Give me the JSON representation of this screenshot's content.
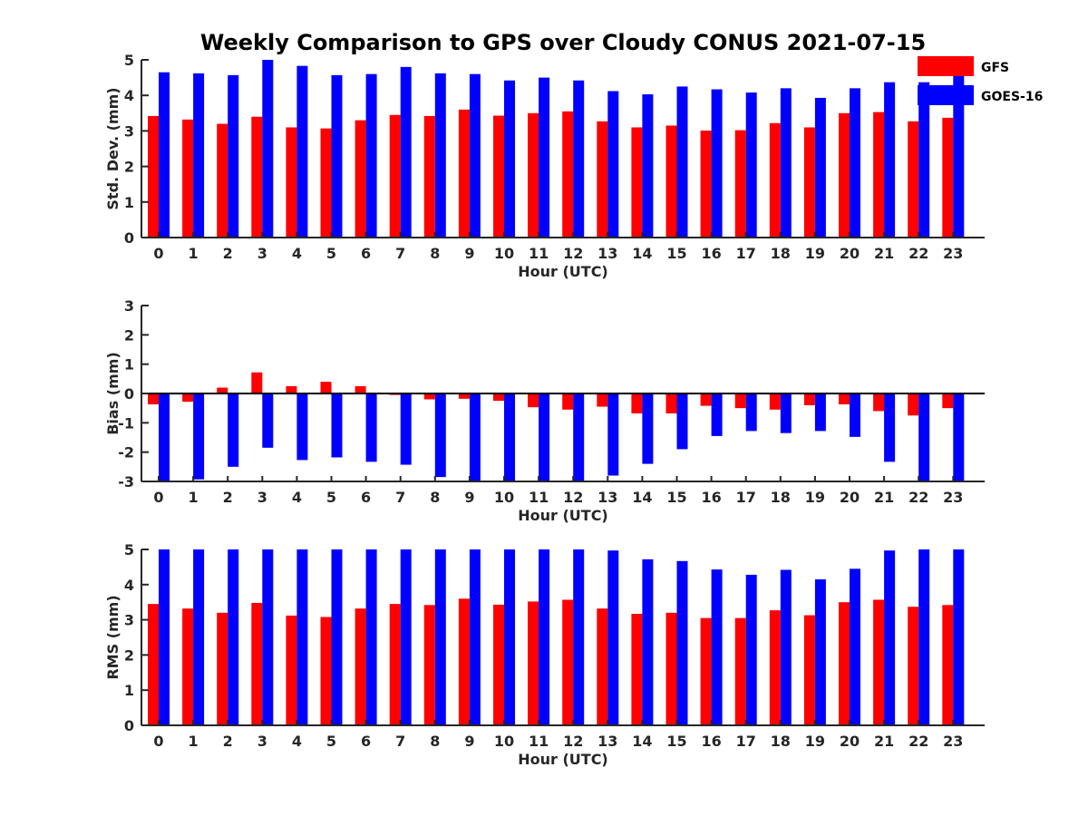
{
  "title": "Weekly Comparison to GPS over Cloudy CONUS 2021-07-15",
  "colors": {
    "GFS": "#ff0000",
    "GOES-16": "#0000ff"
  },
  "legend": {
    "placement": "top-right",
    "entries": [
      {
        "name": "GFS",
        "color": "#ff0000"
      },
      {
        "name": "GOES-16",
        "color": "#0000ff"
      }
    ]
  },
  "chart_data": [
    {
      "type": "bar",
      "xlabel": "Hour (UTC)",
      "ylabel": "Std. Dev. (mm)",
      "ylim": [
        0,
        5
      ],
      "yticks": [
        0,
        1,
        2,
        3,
        4,
        5
      ],
      "categories": [
        "0",
        "1",
        "2",
        "3",
        "4",
        "5",
        "6",
        "7",
        "8",
        "9",
        "10",
        "11",
        "12",
        "13",
        "14",
        "15",
        "16",
        "17",
        "18",
        "19",
        "20",
        "21",
        "22",
        "23"
      ],
      "series": [
        {
          "name": "GFS",
          "color": "#ff0000",
          "values": [
            3.42,
            3.32,
            3.2,
            3.4,
            3.1,
            3.07,
            3.3,
            3.45,
            3.42,
            3.6,
            3.43,
            3.5,
            3.55,
            3.27,
            3.1,
            3.15,
            3.01,
            3.02,
            3.22,
            3.1,
            3.5,
            3.53,
            3.27,
            3.37
          ]
        },
        {
          "name": "GOES-16",
          "color": "#0000ff",
          "values": [
            4.65,
            4.62,
            4.57,
            5.0,
            4.83,
            4.57,
            4.6,
            4.8,
            4.62,
            4.6,
            4.42,
            4.5,
            4.42,
            4.12,
            4.03,
            4.25,
            4.17,
            4.08,
            4.2,
            3.93,
            4.2,
            4.37,
            4.37,
            4.7
          ]
        }
      ]
    },
    {
      "type": "bar",
      "xlabel": "Hour (UTC)",
      "ylabel": "Bias (mm)",
      "ylim": [
        -3,
        3
      ],
      "yticks": [
        -3,
        -2,
        -1,
        0,
        1,
        2,
        3
      ],
      "categories": [
        "0",
        "1",
        "2",
        "3",
        "4",
        "5",
        "6",
        "7",
        "8",
        "9",
        "10",
        "11",
        "12",
        "13",
        "14",
        "15",
        "16",
        "17",
        "18",
        "19",
        "20",
        "21",
        "22",
        "23"
      ],
      "series": [
        {
          "name": "GFS",
          "color": "#ff0000",
          "values": [
            -0.37,
            -0.28,
            0.2,
            0.72,
            0.25,
            0.4,
            0.25,
            -0.05,
            -0.2,
            -0.18,
            -0.25,
            -0.47,
            -0.55,
            -0.45,
            -0.68,
            -0.68,
            -0.42,
            -0.5,
            -0.55,
            -0.4,
            -0.37,
            -0.6,
            -0.75,
            -0.5
          ]
        },
        {
          "name": "GOES-16",
          "color": "#0000ff",
          "values": [
            -3.0,
            -2.93,
            -2.5,
            -1.85,
            -2.27,
            -2.18,
            -2.33,
            -2.43,
            -2.85,
            -3.0,
            -3.0,
            -3.0,
            -3.0,
            -2.8,
            -2.4,
            -1.9,
            -1.45,
            -1.28,
            -1.35,
            -1.28,
            -1.48,
            -2.33,
            -3.0,
            -3.0
          ]
        }
      ]
    },
    {
      "type": "bar",
      "xlabel": "Hour (UTC)",
      "ylabel": "RMS (mm)",
      "ylim": [
        0,
        5
      ],
      "yticks": [
        0,
        1,
        2,
        3,
        4,
        5
      ],
      "categories": [
        "0",
        "1",
        "2",
        "3",
        "4",
        "5",
        "6",
        "7",
        "8",
        "9",
        "10",
        "11",
        "12",
        "13",
        "14",
        "15",
        "16",
        "17",
        "18",
        "19",
        "20",
        "21",
        "22",
        "23"
      ],
      "series": [
        {
          "name": "GFS",
          "color": "#ff0000",
          "values": [
            3.45,
            3.32,
            3.2,
            3.48,
            3.12,
            3.08,
            3.32,
            3.45,
            3.42,
            3.6,
            3.43,
            3.52,
            3.57,
            3.32,
            3.17,
            3.2,
            3.05,
            3.05,
            3.27,
            3.13,
            3.5,
            3.57,
            3.37,
            3.42
          ]
        },
        {
          "name": "GOES-16",
          "color": "#0000ff",
          "values": [
            5.0,
            5.0,
            5.0,
            5.0,
            5.0,
            5.0,
            5.0,
            5.0,
            5.0,
            5.0,
            5.0,
            5.0,
            5.0,
            4.97,
            4.72,
            4.67,
            4.43,
            4.28,
            4.42,
            4.15,
            4.45,
            4.97,
            5.0,
            5.0
          ]
        }
      ]
    }
  ]
}
